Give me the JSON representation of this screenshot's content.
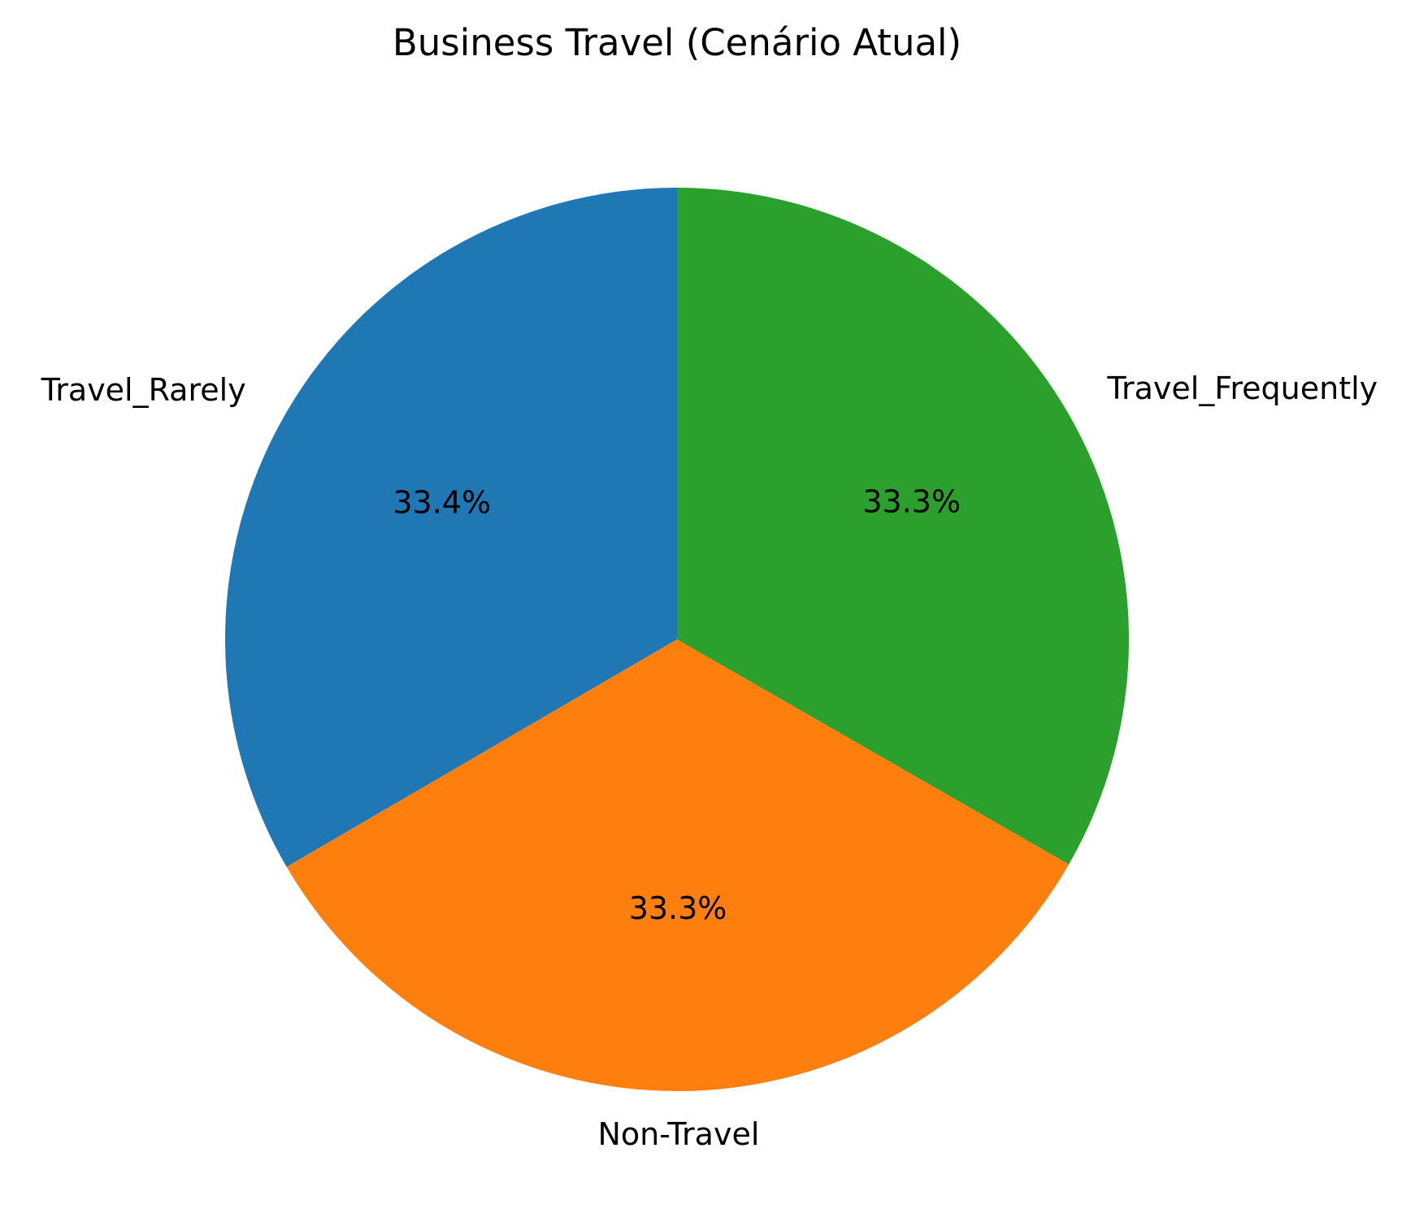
{
  "chart_data": {
    "type": "pie",
    "title": "Business Travel (Cenário Atual)",
    "start_angle_deg": 90,
    "direction": "counterclockwise",
    "slices": [
      {
        "label": "Travel_Rarely",
        "value": 33.4,
        "pct_label": "33.4%",
        "color": "#1f77b4"
      },
      {
        "label": "Non-Travel",
        "value": 33.3,
        "pct_label": "33.3%",
        "color": "#ff7f0e"
      },
      {
        "label": "Travel_Frequently",
        "value": 33.3,
        "pct_label": "33.3%",
        "color": "#2ca02c"
      }
    ]
  }
}
